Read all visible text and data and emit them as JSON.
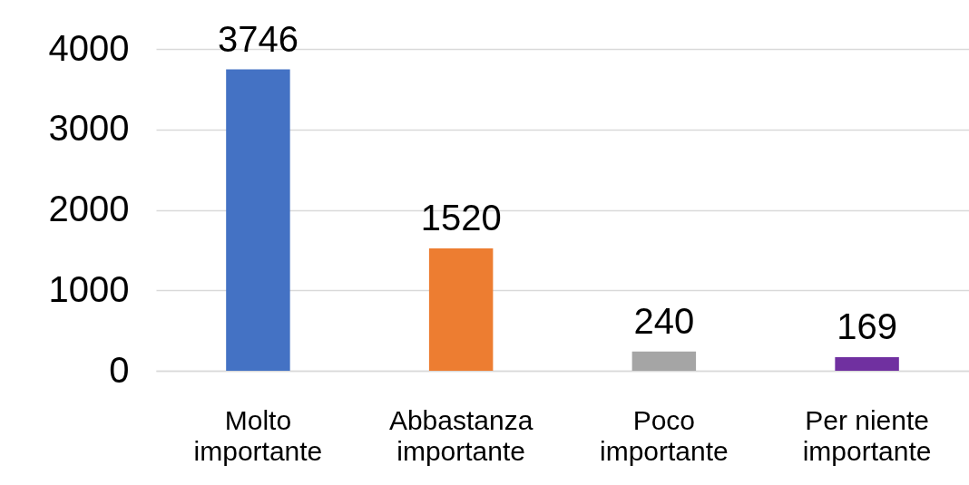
{
  "chart_data": {
    "type": "bar",
    "categories": [
      "Molto importante",
      "Abbastanza importante",
      "Poco importante",
      "Per niente importante"
    ],
    "values": [
      3746,
      1520,
      240,
      169
    ],
    "colors": [
      "#4472c4",
      "#ed7d31",
      "#a5a5a5",
      "#7030a0"
    ],
    "ylim": [
      0,
      4000
    ],
    "yticks": [
      0,
      1000,
      2000,
      3000,
      4000
    ],
    "grid": "y",
    "legend": false,
    "data_labels": true
  }
}
